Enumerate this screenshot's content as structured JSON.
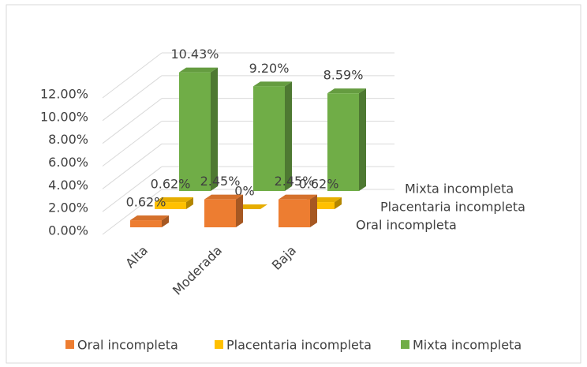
{
  "chart_data": {
    "type": "bar3d",
    "categories": [
      "Alta",
      "Moderada",
      "Baja"
    ],
    "series": [
      {
        "name": "Oral incompleta",
        "color": "#ed7d31",
        "values": [
          0.62,
          2.45,
          2.45
        ],
        "value_labels": [
          "0.62%",
          "2.45%",
          "2.45%"
        ]
      },
      {
        "name": "Placentaria incompleta",
        "color": "#ffc000",
        "values": [
          0.62,
          0,
          0.62
        ],
        "value_labels": [
          "0.62%",
          "0%",
          "0.62%"
        ]
      },
      {
        "name": "Mixta incompleta",
        "color": "#70ad47",
        "values": [
          10.43,
          9.2,
          8.59
        ],
        "value_labels": [
          "10.43%",
          "9.20%",
          "8.59%"
        ]
      }
    ],
    "ylim": [
      0,
      12
    ],
    "yticks": [
      {
        "value": 0,
        "label": "0.00%"
      },
      {
        "value": 2,
        "label": "2.00%"
      },
      {
        "value": 4,
        "label": "4.00%"
      },
      {
        "value": 6,
        "label": "6.00%"
      },
      {
        "value": 8,
        "label": "8.00%"
      },
      {
        "value": 10,
        "label": "10.00%"
      },
      {
        "value": 12,
        "label": "12.00%"
      }
    ],
    "grid": true,
    "legend": "bottom"
  }
}
